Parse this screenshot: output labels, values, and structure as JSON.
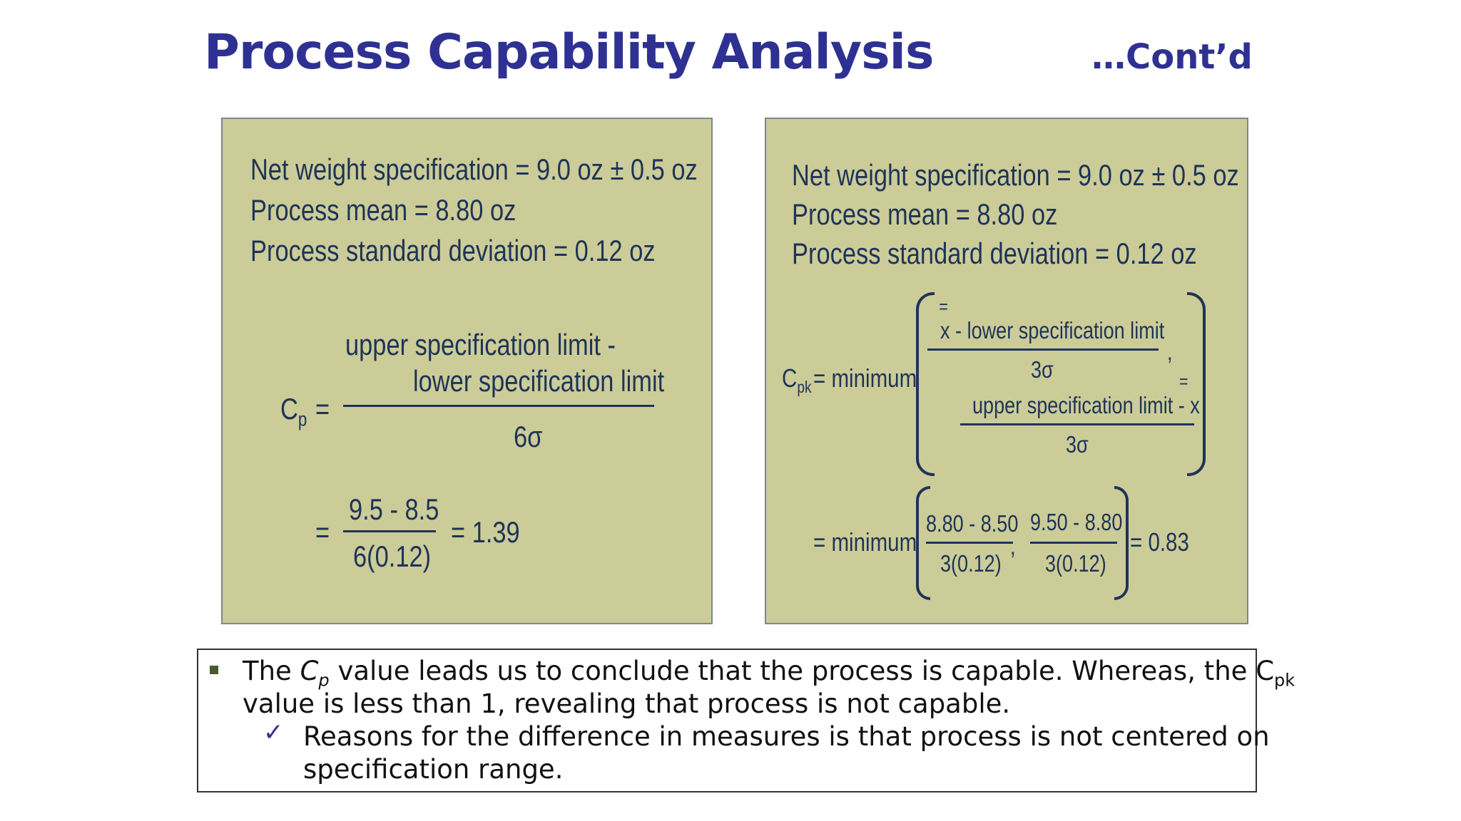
{
  "slide": {
    "title": "Process Capability Analysis",
    "continued": "…Cont’d"
  },
  "left_panel": {
    "spec_line": "Net weight specification = 9.0 oz ± 0.5 oz",
    "mean_line": "Process mean = 8.80 oz",
    "sd_line": "Process standard deviation = 0.12 oz",
    "cp_symbol": "C",
    "cp_sub": "p",
    "eq": "=",
    "num_line1": "upper specification limit -",
    "num_line2": "lower specification limit",
    "denominator": "6σ",
    "calc_eq": "=",
    "calc_num": "9.5 - 8.5",
    "calc_den": "6(0.12)",
    "calc_result": "= 1.39"
  },
  "right_panel": {
    "spec_line": "Net weight specification = 9.0 oz ± 0.5 oz",
    "mean_line": "Process mean = 8.80 oz",
    "sd_line": "Process standard deviation = 0.12 oz",
    "cpk_symbol": "C",
    "cpk_sub": "pk",
    "minimum_label": "= minimum",
    "frac1_x": "x",
    "frac1_num_rest": " - lower specification limit",
    "frac1_den": "3σ",
    "comma": ",",
    "frac2_num": "upper specification limit - x",
    "frac2_eq_mark": "=",
    "frac2_den": "3σ",
    "minimum_label2": "= minimum",
    "calc1_num": "8.80 - 8.50",
    "calc1_den": "3(0.12)",
    "calc2_num": "9.50 - 8.80",
    "calc2_den": "3(0.12)",
    "calc_result": "= 0.83"
  },
  "note": {
    "line1_pre": "The ",
    "line1_cp": "C",
    "line1_cp_sub": "p",
    "line1_post": " value leads us to conclude that the process is capable. Whereas, the C",
    "line1_cpk_sub": "pk",
    "line2": "value is less than 1, revealing that process is not capable.",
    "sub_line1": "Reasons for the difference in measures is that process is not centered on",
    "sub_line2": "specification range.",
    "check_mark": "✓"
  }
}
